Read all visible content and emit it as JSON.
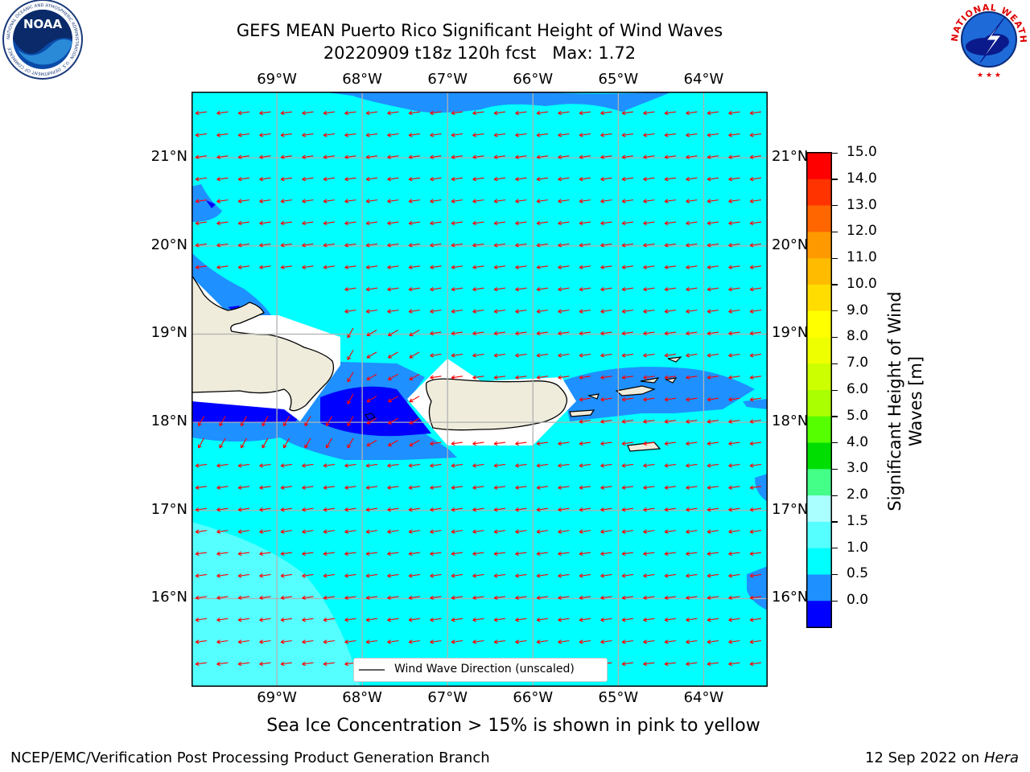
{
  "title": {
    "line1": "GEFS MEAN Puerto Rico Significant Height of Wind Waves",
    "line2": "20220909 t18z 120h fcst   Max: 1.72"
  },
  "logos": {
    "left": {
      "icon": "noaa-logo",
      "text": "NOAA",
      "ring_text": "NATIONAL OCEANIC AND ATMOSPHERIC ADMINISTRATION · U.S. DEPARTMENT OF COMMERCE"
    },
    "right": {
      "icon": "nws-logo",
      "ring_text": "NATIONAL WEATHER SERVICE"
    }
  },
  "map": {
    "lon_labels": [
      "69°W",
      "68°W",
      "67°W",
      "66°W",
      "65°W",
      "64°W"
    ],
    "lat_labels": [
      "21°N",
      "20°N",
      "19°N",
      "18°N",
      "17°N",
      "16°N"
    ],
    "lon_range": [
      -70,
      -63.25
    ],
    "lat_range": [
      15,
      21.75
    ],
    "ocean_color": "#00ffff",
    "land_color": "#efecdc",
    "arrow_color": "#ff0000",
    "grid": true
  },
  "legend": {
    "label": "Wind Wave Direction (unscaled)"
  },
  "colorbar": {
    "label_line1": "Significant Height of Wind",
    "label_line2": "Waves [m]",
    "ticks": [
      "15.0",
      "14.0",
      "13.0",
      "12.0",
      "11.0",
      "10.0",
      "9.0",
      "8.0",
      "7.0",
      "6.0",
      "5.0",
      "4.0",
      "3.0",
      "2.0",
      "1.5",
      "1.0",
      "0.5",
      "0.0"
    ],
    "colors": [
      "#ff0000",
      "#ff3300",
      "#ff6600",
      "#ff9900",
      "#ffbb00",
      "#ffdd00",
      "#ffff00",
      "#eeff00",
      "#ccff00",
      "#aaff00",
      "#55ff00",
      "#00dd00",
      "#44ff88",
      "#aaffff",
      "#55ffff",
      "#00ffff",
      "#1e90ff",
      "#0000ff"
    ]
  },
  "note": "Sea Ice Concentration > 15% is shown in pink to yellow",
  "footer": {
    "left": "NCEP/EMC/Verification Post Processing Product Generation Branch",
    "right_date": "12 Sep 2022 on ",
    "right_host": "Hera"
  }
}
